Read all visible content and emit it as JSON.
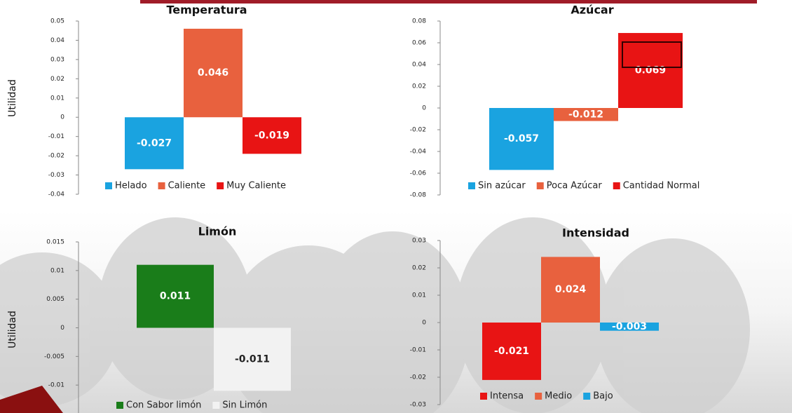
{
  "chart_data": [
    {
      "type": "bar",
      "title": "Temperatura",
      "y_label": "Utilidad",
      "categories": [
        "Helado",
        "Caliente",
        "Muy Caliente"
      ],
      "values": [
        -0.027,
        0.046,
        -0.019
      ],
      "colors": [
        "#1aa3e0",
        "#e8613e",
        "#e81414"
      ],
      "ylim": [
        -0.04,
        0.05
      ],
      "yticks": [
        0.05,
        0.04,
        0.03,
        0.02,
        0.01,
        0,
        -0.01,
        -0.02,
        -0.03,
        -0.04
      ]
    },
    {
      "type": "bar",
      "title": "Azúcar",
      "categories": [
        "Sin azúcar",
        "Poca Azúcar",
        "Cantidad Normal"
      ],
      "values": [
        -0.057,
        -0.012,
        0.069
      ],
      "colors": [
        "#1aa3e0",
        "#e8613e",
        "#e81414"
      ],
      "ylim": [
        -0.08,
        0.08
      ],
      "yticks": [
        0.08,
        0.06,
        0.04,
        0.02,
        0,
        -0.02,
        -0.04,
        -0.06,
        -0.08
      ]
    },
    {
      "type": "bar",
      "title": "Limón",
      "y_label": "Utilidad",
      "categories": [
        "Con Sabor limón",
        "Sin Limón"
      ],
      "values": [
        0.011,
        -0.011
      ],
      "colors": [
        "#1a7d1a",
        "#f2f2f2"
      ],
      "ylim": [
        -0.015,
        0.015
      ],
      "yticks": [
        0.015,
        0.01,
        0.005,
        0,
        -0.005,
        -0.01
      ]
    },
    {
      "type": "bar",
      "title": "Intensidad",
      "categories": [
        "Intensa",
        "Medio",
        "Bajo"
      ],
      "values": [
        -0.021,
        0.024,
        -0.003
      ],
      "colors": [
        "#e81414",
        "#e8613e",
        "#1aa3e0"
      ],
      "ylim": [
        -0.03,
        0.03
      ],
      "yticks": [
        0.03,
        0.02,
        0.01,
        0,
        -0.01,
        -0.02,
        -0.03
      ]
    }
  ]
}
